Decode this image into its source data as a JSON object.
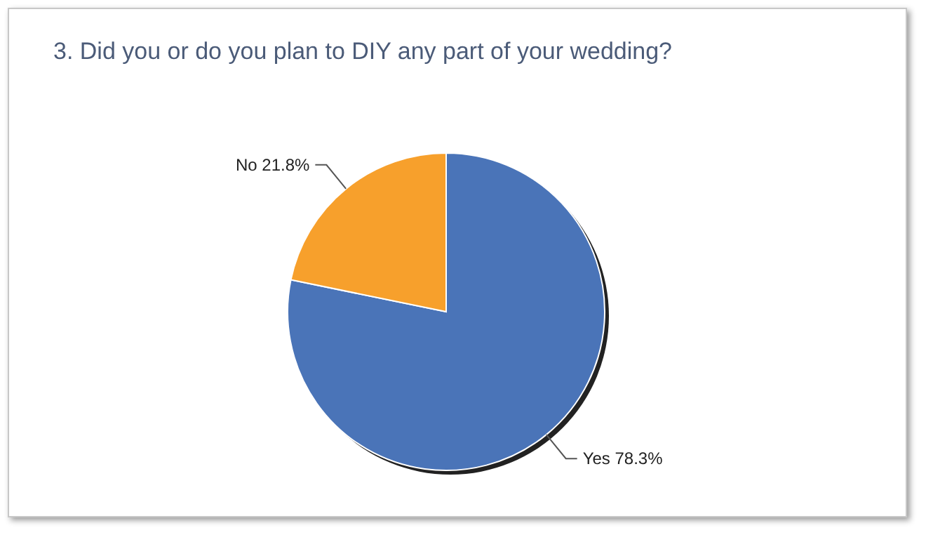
{
  "chart_data": {
    "type": "pie",
    "title": "3. Did you or do you plan to DIY any part of your wedding?",
    "categories": [
      "Yes",
      "No"
    ],
    "values": [
      78.3,
      21.8
    ],
    "value_labels": [
      "78.3%",
      "21.8%"
    ],
    "colors": [
      "#4a74b8",
      "#f7a02c"
    ]
  }
}
